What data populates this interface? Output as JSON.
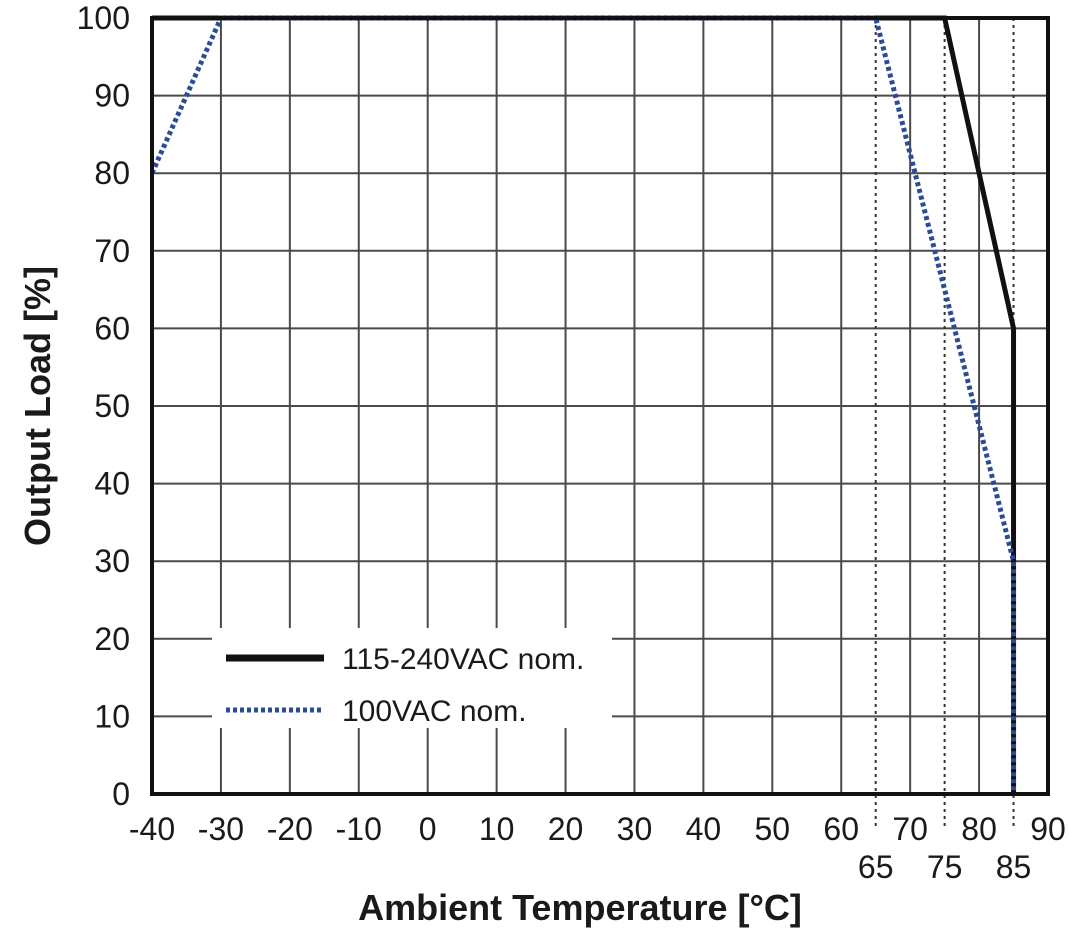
{
  "chart_data": {
    "type": "line",
    "title": "",
    "xlabel": "Ambient Temperature [°C]",
    "ylabel": "Output Load [%]",
    "xlim": [
      -40,
      90
    ],
    "ylim": [
      0,
      100
    ],
    "grid": true,
    "x_ticks": [
      "-40",
      "-30",
      "-20",
      "-10",
      "0",
      "10",
      "20",
      "30",
      "40",
      "50",
      "60",
      "70",
      "80",
      "90"
    ],
    "y_ticks": [
      "0",
      "10",
      "20",
      "30",
      "40",
      "50",
      "60",
      "70",
      "80",
      "90",
      "100"
    ],
    "extra_x_markers": [
      "65",
      "75",
      "85"
    ],
    "legend_position": "lower-left",
    "series": [
      {
        "name": "115-240VAC nom.",
        "color": "#111111",
        "style": "solid",
        "x": [
          -40,
          -30,
          75,
          85,
          85
        ],
        "y": [
          100,
          100,
          100,
          60,
          0
        ]
      },
      {
        "name": "100VAC nom.",
        "color": "#2b4a9a",
        "style": "dotted",
        "x": [
          -40,
          -30,
          65,
          85,
          85
        ],
        "y": [
          80,
          100,
          100,
          30,
          0
        ]
      }
    ]
  }
}
